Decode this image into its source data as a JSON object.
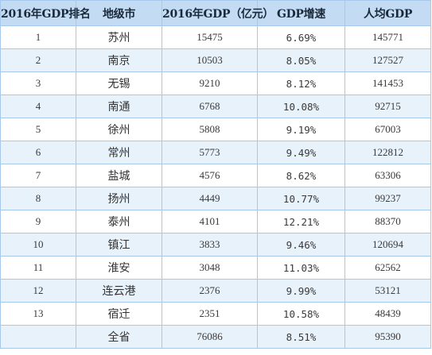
{
  "table": {
    "headers": [
      "2016年GDP排名",
      "地级市",
      "2016年GDP（亿元）",
      "GDP增速",
      "人均GDP"
    ],
    "rows": [
      {
        "rank": "1",
        "city": "苏州",
        "gdp": "15475",
        "growth": "6.69%",
        "per_capita": "145771"
      },
      {
        "rank": "2",
        "city": "南京",
        "gdp": "10503",
        "growth": "8.05%",
        "per_capita": "127527"
      },
      {
        "rank": "3",
        "city": "无锡",
        "gdp": "9210",
        "growth": "8.12%",
        "per_capita": "141453"
      },
      {
        "rank": "4",
        "city": "南通",
        "gdp": "6768",
        "growth": "10.08%",
        "per_capita": "92715"
      },
      {
        "rank": "5",
        "city": "徐州",
        "gdp": "5808",
        "growth": "9.19%",
        "per_capita": "67003"
      },
      {
        "rank": "6",
        "city": "常州",
        "gdp": "5773",
        "growth": "9.49%",
        "per_capita": "122812"
      },
      {
        "rank": "7",
        "city": "盐城",
        "gdp": "4576",
        "growth": "8.62%",
        "per_capita": "63306"
      },
      {
        "rank": "8",
        "city": "扬州",
        "gdp": "4449",
        "growth": "10.77%",
        "per_capita": "99237"
      },
      {
        "rank": "9",
        "city": "泰州",
        "gdp": "4101",
        "growth": "12.21%",
        "per_capita": "88370"
      },
      {
        "rank": "10",
        "city": "镇江",
        "gdp": "3833",
        "growth": "9.46%",
        "per_capita": "120694"
      },
      {
        "rank": "11",
        "city": "淮安",
        "gdp": "3048",
        "growth": "11.03%",
        "per_capita": "62562"
      },
      {
        "rank": "12",
        "city": "连云港",
        "gdp": "2376",
        "growth": "9.99%",
        "per_capita": "53121"
      },
      {
        "rank": "13",
        "city": "宿迁",
        "gdp": "2351",
        "growth": "10.58%",
        "per_capita": "48439"
      },
      {
        "rank": "",
        "city": "全省",
        "gdp": "76086",
        "growth": "8.51%",
        "per_capita": "95390"
      }
    ]
  },
  "colors": {
    "header_bg": "#c3dcf3",
    "border": "#a6c8ea",
    "stripe": "#e8f2fb"
  }
}
